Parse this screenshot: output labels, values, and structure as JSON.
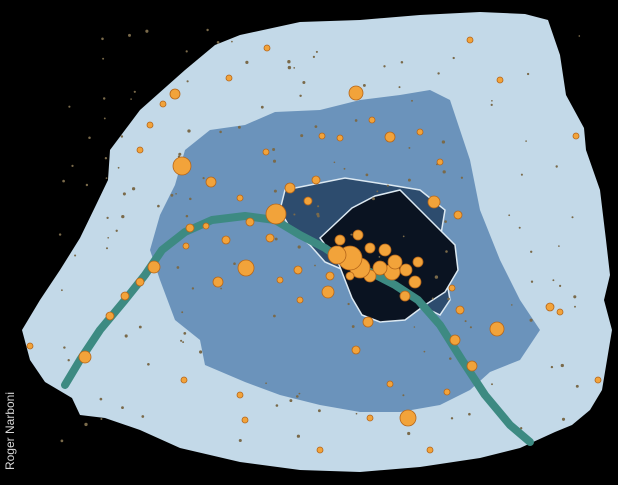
{
  "credit": "Roger Narboni",
  "colors": {
    "background": "#000000",
    "zone_outer": "#c3d9e8",
    "zone_middle": "#6b93bb",
    "zone_inner": "#2d4c6e",
    "zone_core": "#0a1321",
    "zone_outline": "#dce9f2",
    "river": "#3d8a82",
    "point_fill": "#f2a33a",
    "point_stroke": "#b5661a",
    "speck": "#7a6a4a"
  },
  "legend_icons": [
    "map-zone",
    "river-line",
    "point-marker"
  ]
}
